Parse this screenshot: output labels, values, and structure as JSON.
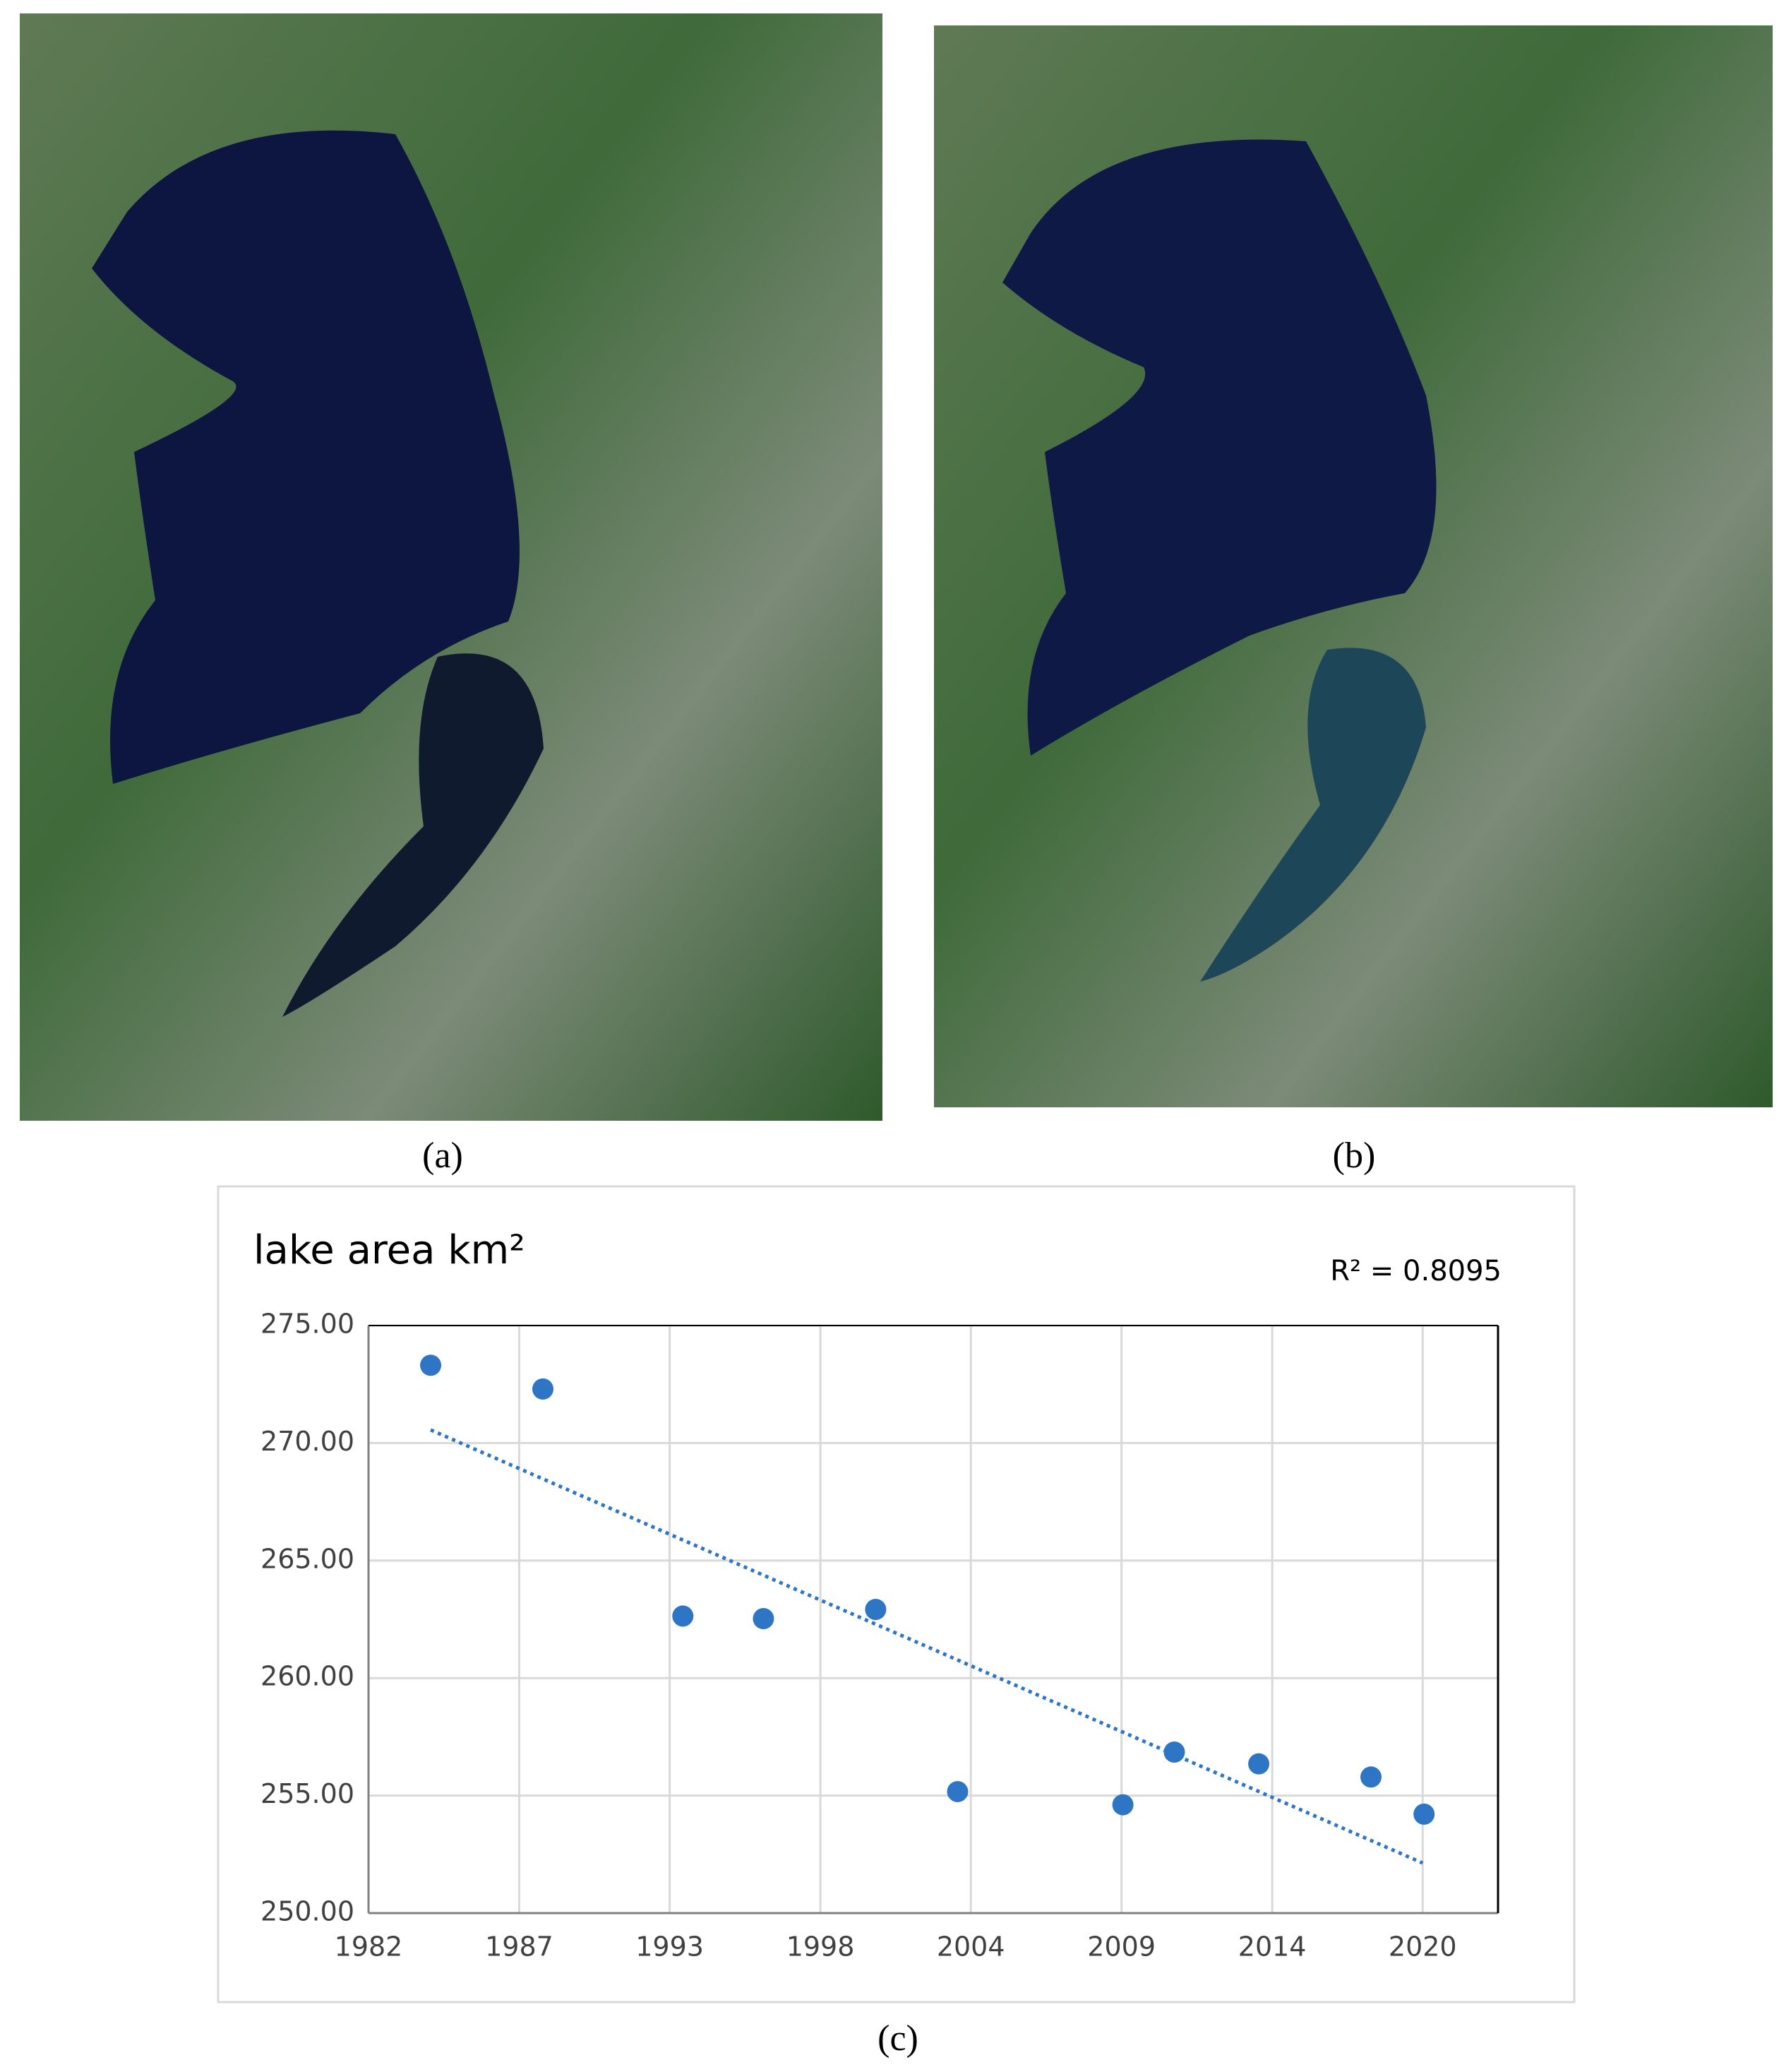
{
  "panel_labels": [
    "(a)",
    "(b)"
  ],
  "chart_label": "(c)",
  "chart_data": {
    "type": "scatter",
    "title": "lake area km²",
    "annotation": "R² = 0.8095",
    "x": [
      1984.26,
      1988.34,
      1993.43,
      1996.36,
      2000.44,
      2003.42,
      2009.43,
      2011.3,
      2014.37,
      2018.45,
      2020.38
    ],
    "values": [
      273.31,
      272.3,
      262.64,
      262.53,
      262.92,
      255.17,
      254.61,
      256.85,
      256.35,
      255.79,
      254.21
    ],
    "color": "#2e75c6",
    "trendline": {
      "x": [
        1984.26,
        2020.33
      ],
      "values": [
        270.56,
        252.13
      ],
      "color": "#2e75c6"
    },
    "xlim": [
      1982,
      2023.07
    ],
    "xticks": [
      {
        "value": 1982,
        "label": "1982"
      },
      {
        "value": 1987.48,
        "label": "1987"
      },
      {
        "value": 1992.95,
        "label": "1993"
      },
      {
        "value": 1998.43,
        "label": "1998"
      },
      {
        "value": 2003.9,
        "label": "2004"
      },
      {
        "value": 2009.38,
        "label": "2009"
      },
      {
        "value": 2014.86,
        "label": "2014"
      },
      {
        "value": 2020.33,
        "label": "2020"
      }
    ],
    "ylim": [
      250,
      275
    ],
    "yticks": [
      {
        "value": 250,
        "label": "250.00"
      },
      {
        "value": 255,
        "label": "255.00"
      },
      {
        "value": 260,
        "label": "260.00"
      },
      {
        "value": 265,
        "label": "265.00"
      },
      {
        "value": 270,
        "label": "270.00"
      },
      {
        "value": 275,
        "label": "275.00"
      }
    ],
    "grid": true
  }
}
